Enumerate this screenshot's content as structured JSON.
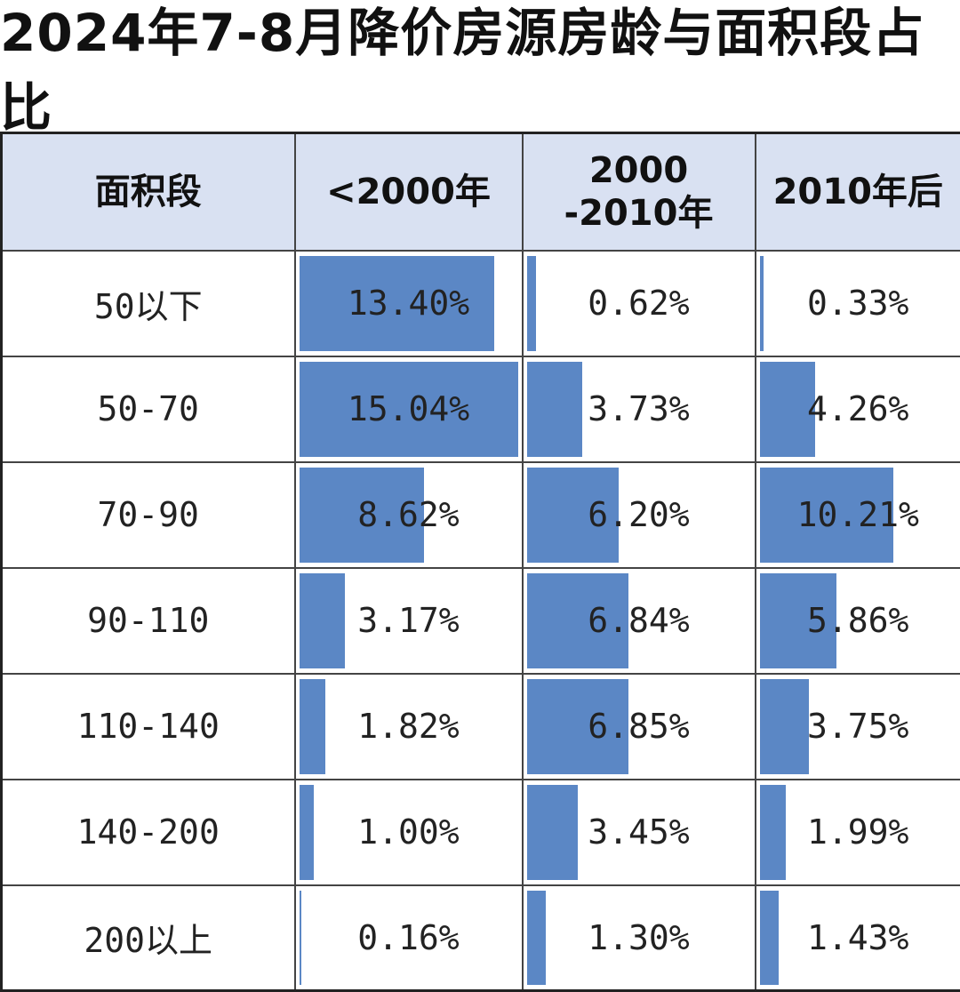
{
  "chart_data": {
    "type": "table",
    "title": "2024年7-8月降价房源房龄与面积段占比",
    "row_header": "面积段",
    "columns": [
      "<2000年",
      "2000 -2010年",
      "2010年后"
    ],
    "columns_display": [
      [
        "<2000年"
      ],
      [
        "2000",
        "-2010年"
      ],
      [
        "2010年后"
      ]
    ],
    "rows": [
      {
        "label": "50以下",
        "values": [
          13.4,
          0.62,
          0.33
        ],
        "labels": [
          "13.40%",
          "0.62%",
          "0.33%"
        ]
      },
      {
        "label": "50-70",
        "values": [
          15.04,
          3.73,
          4.26
        ],
        "labels": [
          "15.04%",
          "3.73%",
          "4.26%"
        ]
      },
      {
        "label": "70-90",
        "values": [
          8.62,
          6.2,
          10.21
        ],
        "labels": [
          "8.62%",
          "6.20%",
          "10.21%"
        ]
      },
      {
        "label": "90-110",
        "values": [
          3.17,
          6.84,
          5.86
        ],
        "labels": [
          "3.17%",
          "6.84%",
          "5.86%"
        ]
      },
      {
        "label": "110-140",
        "values": [
          1.82,
          6.85,
          3.75
        ],
        "labels": [
          "1.82%",
          "6.85%",
          "3.75%"
        ]
      },
      {
        "label": "140-200",
        "values": [
          1.0,
          3.45,
          1.99
        ],
        "labels": [
          "1.00%",
          "3.45%",
          "1.99%"
        ]
      },
      {
        "label": "200以上",
        "values": [
          0.16,
          1.3,
          1.43
        ],
        "labels": [
          "0.16%",
          "1.30%",
          "1.43%"
        ]
      }
    ],
    "value_unit": "%",
    "bar_color": "#5b87c5",
    "header_bg": "#d9e1f2"
  }
}
